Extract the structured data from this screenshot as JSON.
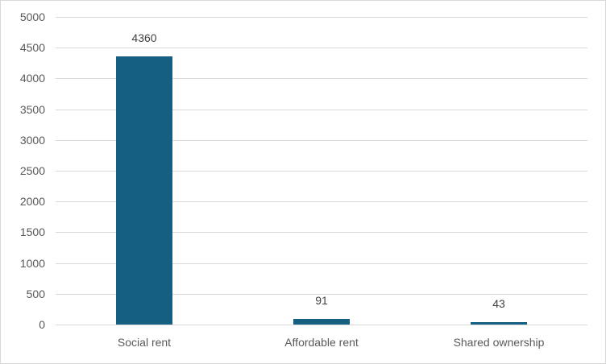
{
  "chart_data": {
    "type": "bar",
    "title": "",
    "xlabel": "",
    "ylabel": "",
    "categories": [
      "Social rent",
      "Affordable rent",
      "Shared ownership"
    ],
    "values": [
      4360,
      91,
      43
    ],
    "data_labels": [
      "4360",
      "91",
      "43"
    ],
    "y_ticks": [
      0,
      500,
      1000,
      1500,
      2000,
      2500,
      3000,
      3500,
      4000,
      4500,
      5000
    ],
    "y_tick_labels": [
      "0",
      "500",
      "1000",
      "1500",
      "2000",
      "2500",
      "3000",
      "3500",
      "4000",
      "4500",
      "5000"
    ],
    "ylim": [
      0,
      5000
    ],
    "grid": true,
    "legend": "none",
    "colors": {
      "bar": "#156082",
      "gridline": "#D9D9D9",
      "axis_line": "#D9D9D9",
      "axis_label": "#595959",
      "data_label": "#404040",
      "border": "#D9D9D9",
      "background": "#FFFFFF"
    }
  }
}
